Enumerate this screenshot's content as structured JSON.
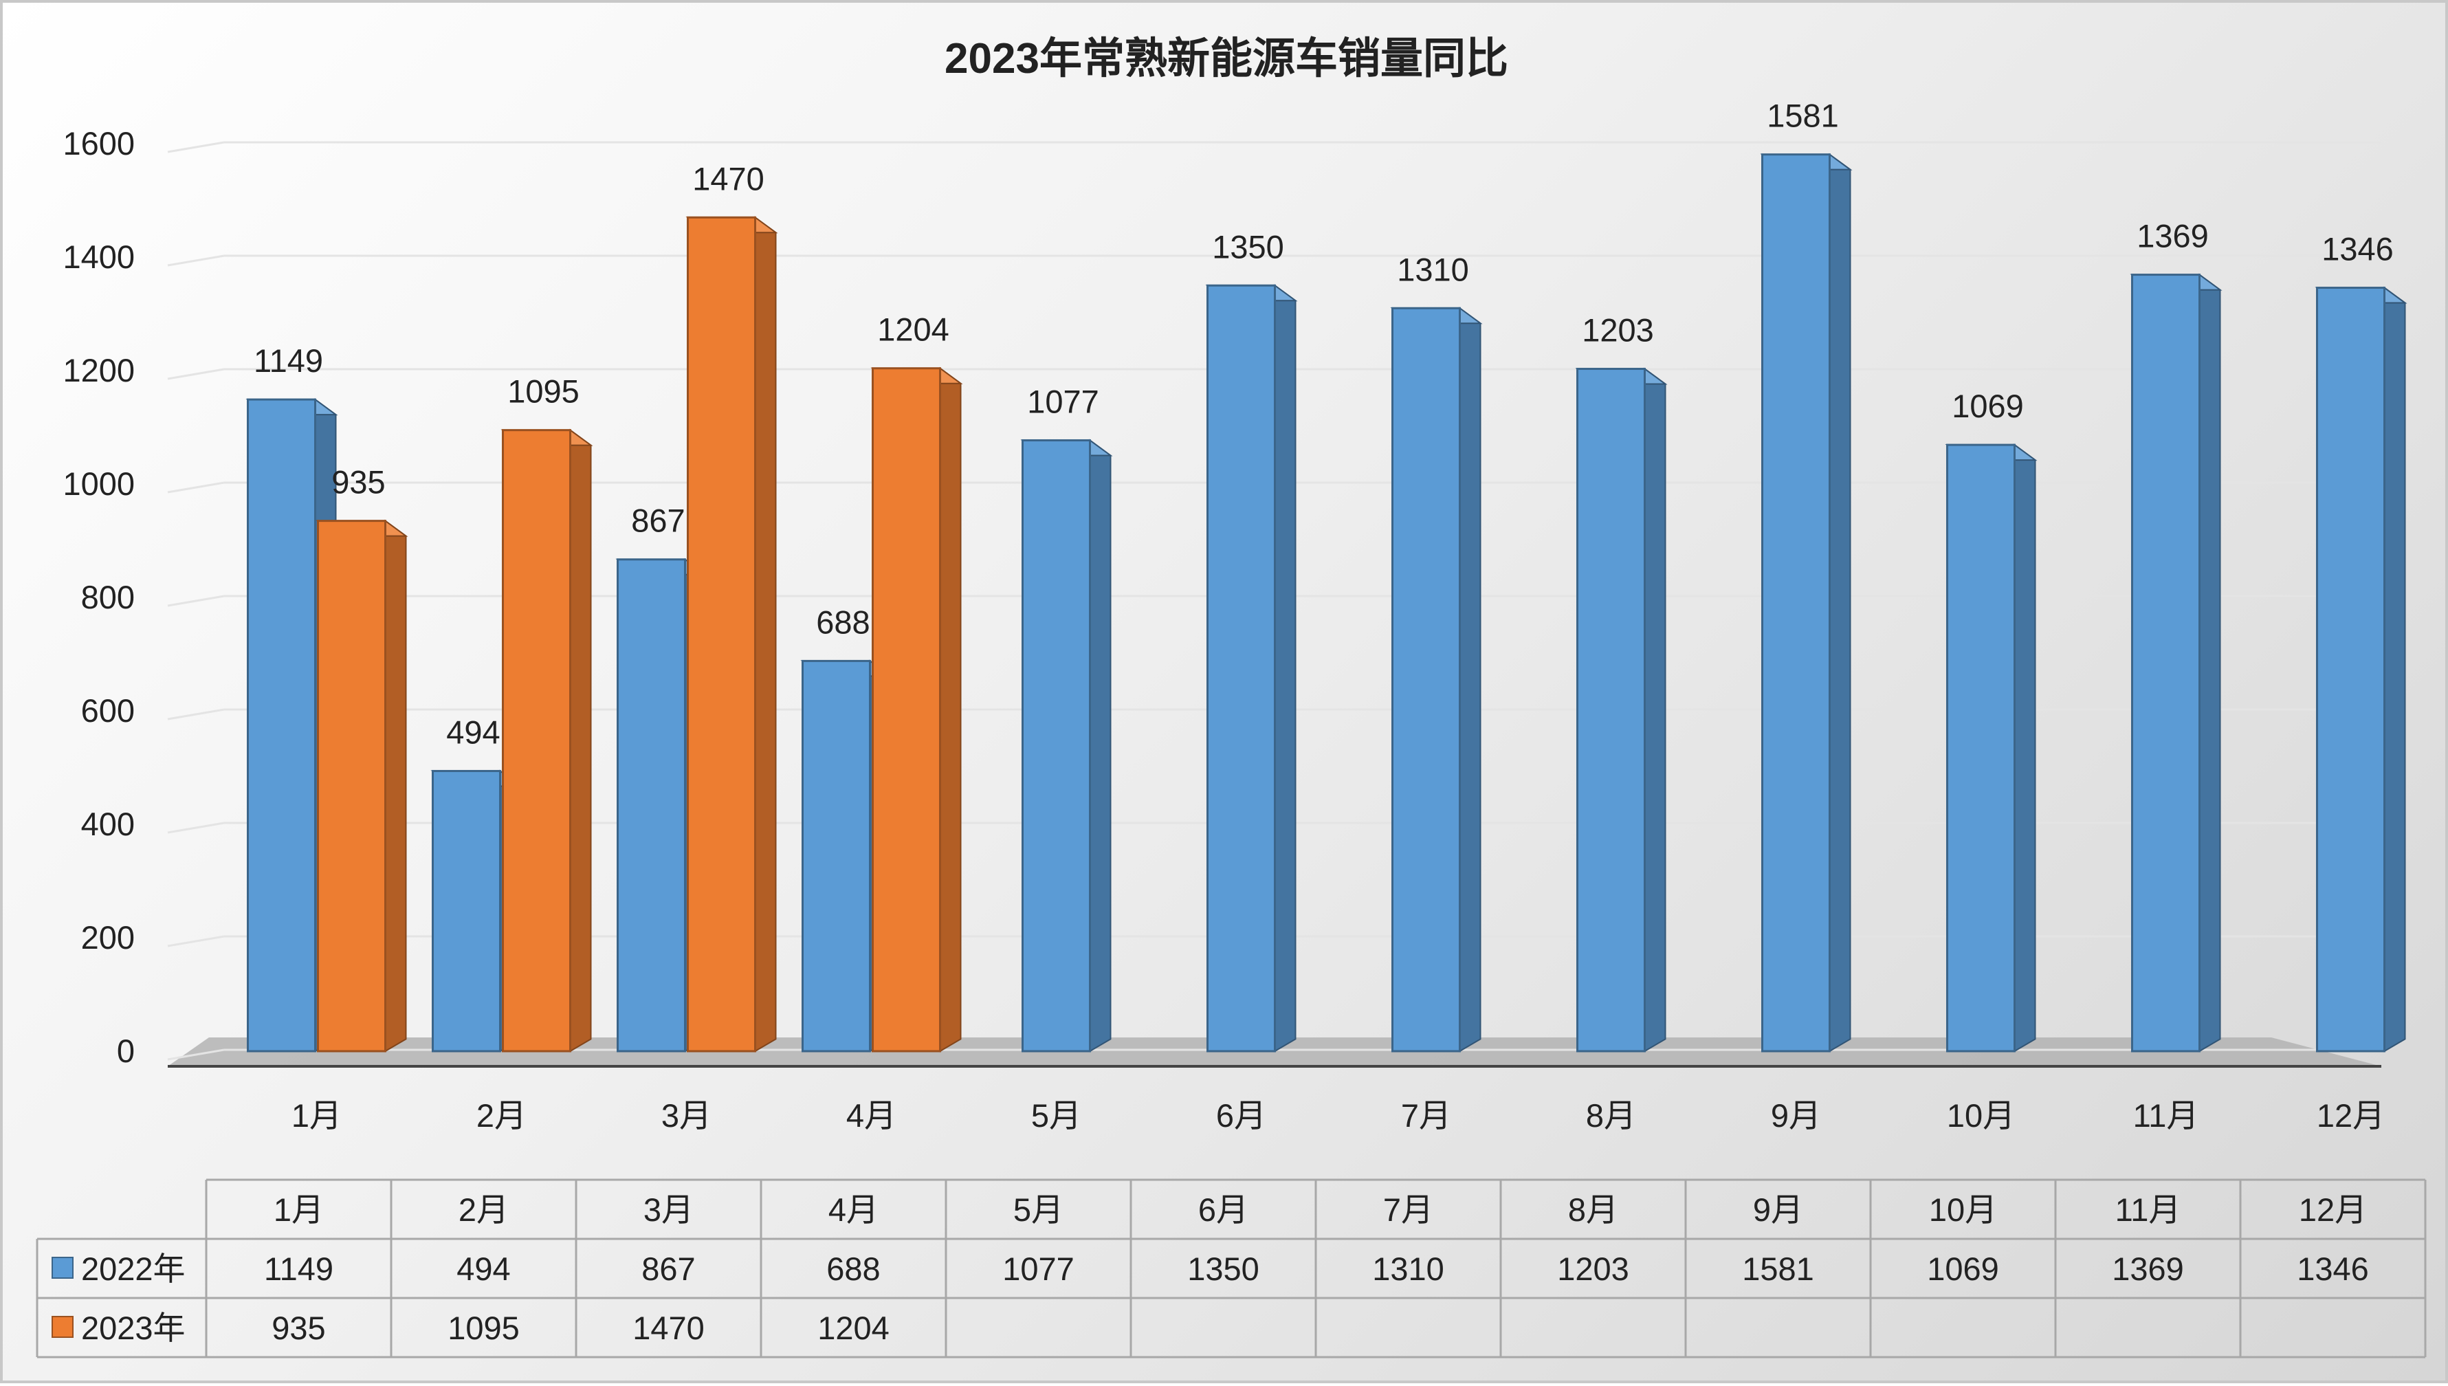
{
  "chart_data": {
    "type": "bar",
    "title": "2023年常熟新能源车销量同比",
    "categories": [
      "1月",
      "2月",
      "3月",
      "4月",
      "5月",
      "6月",
      "7月",
      "8月",
      "9月",
      "10月",
      "11月",
      "12月"
    ],
    "series": [
      {
        "name": "2022年",
        "values": [
          1149,
          494,
          867,
          688,
          1077,
          1350,
          1310,
          1203,
          1581,
          1069,
          1369,
          1346
        ]
      },
      {
        "name": "2023年",
        "values": [
          935,
          1095,
          1470,
          1204,
          null,
          null,
          null,
          null,
          null,
          null,
          null,
          null
        ]
      }
    ],
    "ylim": [
      0,
      1600
    ],
    "yticks": [
      0,
      200,
      400,
      600,
      800,
      1000,
      1200,
      1400,
      1600
    ],
    "xlabel": "",
    "ylabel": "",
    "grid": true,
    "data_labels": true,
    "data_table": true,
    "style": "3d-clustered-column",
    "colors": {
      "2022年": "#5B9BD5",
      "2023年": "#ED7D31"
    }
  }
}
